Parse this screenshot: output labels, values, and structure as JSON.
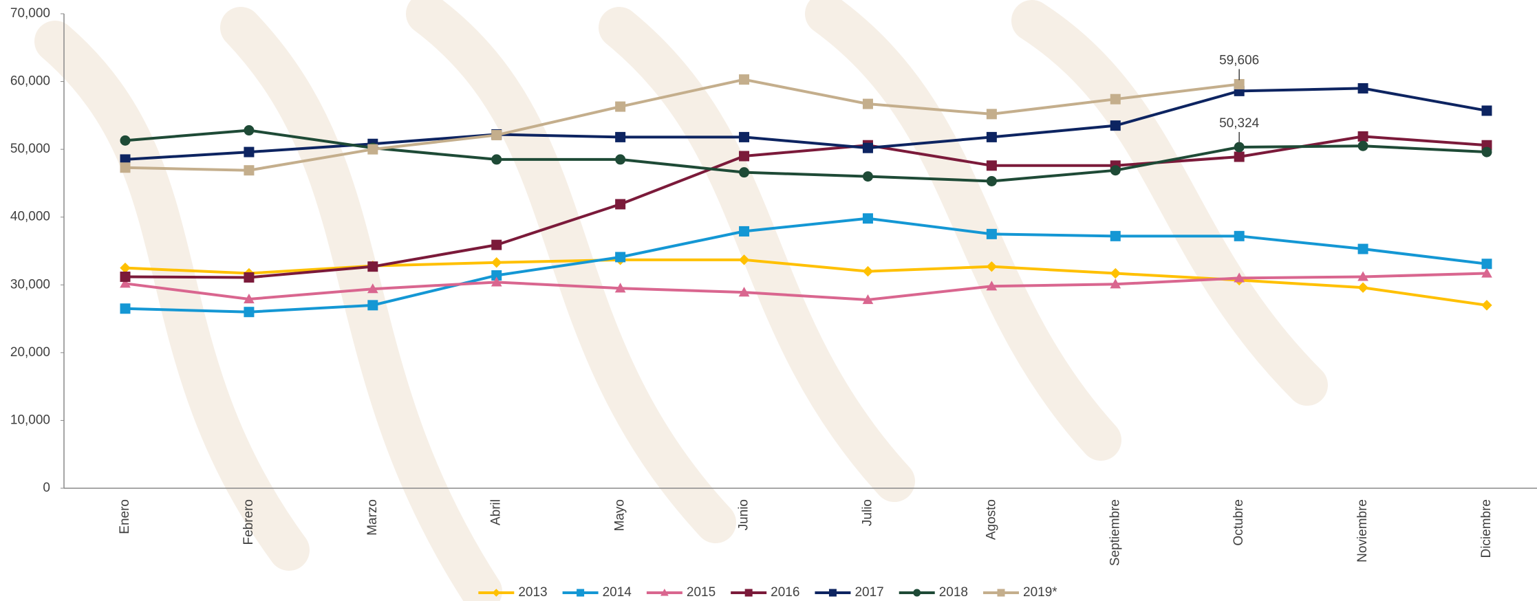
{
  "chart_data": {
    "type": "line",
    "categories": [
      "Enero",
      "Febrero",
      "Marzo",
      "Abril",
      "Mayo",
      "Junio",
      "Julio",
      "Agosto",
      "Septiembre",
      "Octubre",
      "Noviembre",
      "Diciembre"
    ],
    "ylim": [
      0,
      70000
    ],
    "yticks": [
      0,
      {
        "value": 10000,
        "label": "10,000"
      },
      {
        "value": 20000,
        "label": "20,000"
      },
      {
        "value": 30000,
        "label": "30,000"
      },
      {
        "value": 40000,
        "label": "40,000"
      },
      {
        "value": 50000,
        "label": "50,000"
      },
      {
        "value": 60000,
        "label": "60,000"
      },
      {
        "value": 70000,
        "label": "70,000"
      }
    ],
    "legend": "bottom",
    "series": [
      {
        "name": "2013",
        "color": "#FFC000",
        "marker": "diamond",
        "values": [
          32500,
          31700,
          32800,
          33300,
          33700,
          33700,
          32000,
          32700,
          31700,
          30700,
          29600,
          27000
        ]
      },
      {
        "name": "2014",
        "color": "#1497D4",
        "marker": "square",
        "values": [
          26500,
          26000,
          27000,
          31400,
          34100,
          37900,
          39800,
          37500,
          37200,
          37200,
          35300,
          33100
        ]
      },
      {
        "name": "2015",
        "color": "#D9668F",
        "marker": "triangle",
        "values": [
          30200,
          27900,
          29400,
          30400,
          29500,
          28900,
          27800,
          29800,
          30100,
          31000,
          31200,
          31700
        ]
      },
      {
        "name": "2016",
        "color": "#7B1A3A",
        "marker": "square",
        "values": [
          31200,
          31100,
          32700,
          35900,
          41900,
          49000,
          50600,
          47600,
          47600,
          48900,
          51900,
          50600
        ]
      },
      {
        "name": "2017",
        "color": "#0D2461",
        "marker": "square",
        "values": [
          48500,
          49600,
          50800,
          52200,
          51800,
          51800,
          50200,
          51800,
          53500,
          58600,
          59000,
          55700
        ]
      },
      {
        "name": "2018",
        "color": "#1E4A36",
        "marker": "circle",
        "values": [
          51300,
          52800,
          50200,
          48500,
          48500,
          46600,
          46000,
          45300,
          46900,
          50324,
          50500,
          49600
        ],
        "value_labels": [
          null,
          null,
          null,
          null,
          null,
          null,
          null,
          null,
          null,
          "50,324",
          null,
          null
        ]
      },
      {
        "name": "2019*",
        "color": "#C4AE8C",
        "marker": "square",
        "values": [
          47300,
          46900,
          50000,
          52100,
          56300,
          60300,
          56700,
          55200,
          57400,
          59606,
          null,
          null
        ],
        "value_labels": [
          null,
          null,
          null,
          null,
          null,
          null,
          null,
          null,
          null,
          "59,606",
          null,
          null
        ]
      }
    ]
  }
}
